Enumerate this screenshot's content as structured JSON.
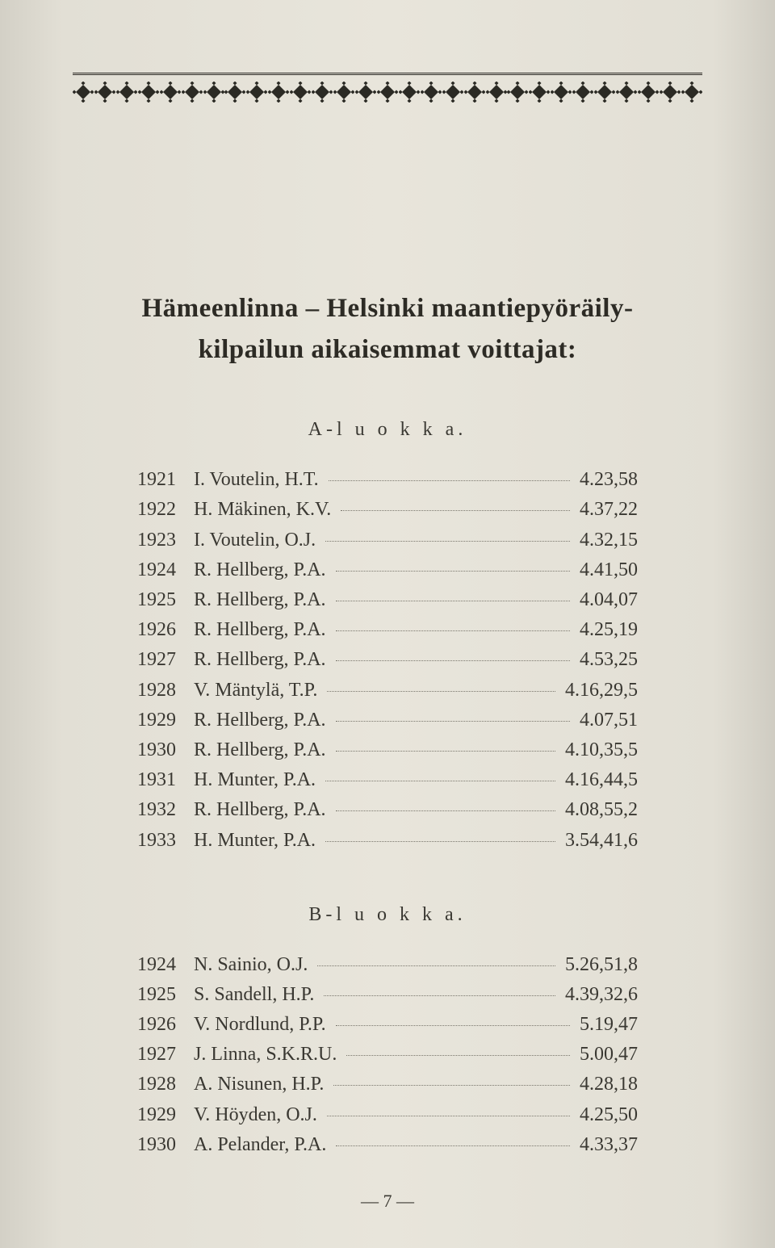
{
  "colors": {
    "page_bg": "#e2dfd5",
    "text": "#3a3832",
    "rule": "#2e2c27",
    "dots": "#7a776d"
  },
  "title_lines": [
    "Hämeenlinna – Helsinki maantiepyöräily-",
    "kilpailun aikaisemmat voittajat:"
  ],
  "sections": [
    {
      "label": "A-l u o k k a.",
      "rows": [
        {
          "year": "1921",
          "name": "I. Voutelin, H.T.",
          "time": "4.23,58"
        },
        {
          "year": "1922",
          "name": "H. Mäkinen, K.V.",
          "time": "4.37,22"
        },
        {
          "year": "1923",
          "name": "I. Voutelin, O.J.",
          "time": "4.32,15"
        },
        {
          "year": "1924",
          "name": "R. Hellberg, P.A.",
          "time": "4.41,50"
        },
        {
          "year": "1925",
          "name": "R. Hellberg, P.A.",
          "time": "4.04,07"
        },
        {
          "year": "1926",
          "name": "R. Hellberg, P.A.",
          "time": "4.25,19"
        },
        {
          "year": "1927",
          "name": "R. Hellberg, P.A.",
          "time": "4.53,25"
        },
        {
          "year": "1928",
          "name": "V. Mäntylä, T.P.",
          "time": "4.16,29,5"
        },
        {
          "year": "1929",
          "name": "R. Hellberg, P.A.",
          "time": "4.07,51"
        },
        {
          "year": "1930",
          "name": "R. Hellberg, P.A.",
          "time": "4.10,35,5"
        },
        {
          "year": "1931",
          "name": "H. Munter, P.A.",
          "time": "4.16,44,5"
        },
        {
          "year": "1932",
          "name": "R. Hellberg, P.A.",
          "time": "4.08,55,2"
        },
        {
          "year": "1933",
          "name": "H. Munter, P.A.",
          "time": "3.54,41,6"
        }
      ]
    },
    {
      "label": "B-l u o k k a.",
      "rows": [
        {
          "year": "1924",
          "name": "N. Sainio, O.J.",
          "time": "5.26,51,8"
        },
        {
          "year": "1925",
          "name": "S. Sandell, H.P.",
          "time": "4.39,32,6"
        },
        {
          "year": "1926",
          "name": "V. Nordlund, P.P.",
          "time": "5.19,47"
        },
        {
          "year": "1927",
          "name": "J. Linna, S.K.R.U.",
          "time": "5.00,47"
        },
        {
          "year": "1928",
          "name": "A. Nisunen, H.P.",
          "time": "4.28,18"
        },
        {
          "year": "1929",
          "name": "V. Höyden, O.J.",
          "time": "4.25,50"
        },
        {
          "year": "1930",
          "name": "A. Pelander, P.A.",
          "time": "4.33,37"
        }
      ]
    }
  ],
  "page_number": "— 7 —",
  "ornament": {
    "count": 29,
    "fill": "#2b2a24"
  }
}
